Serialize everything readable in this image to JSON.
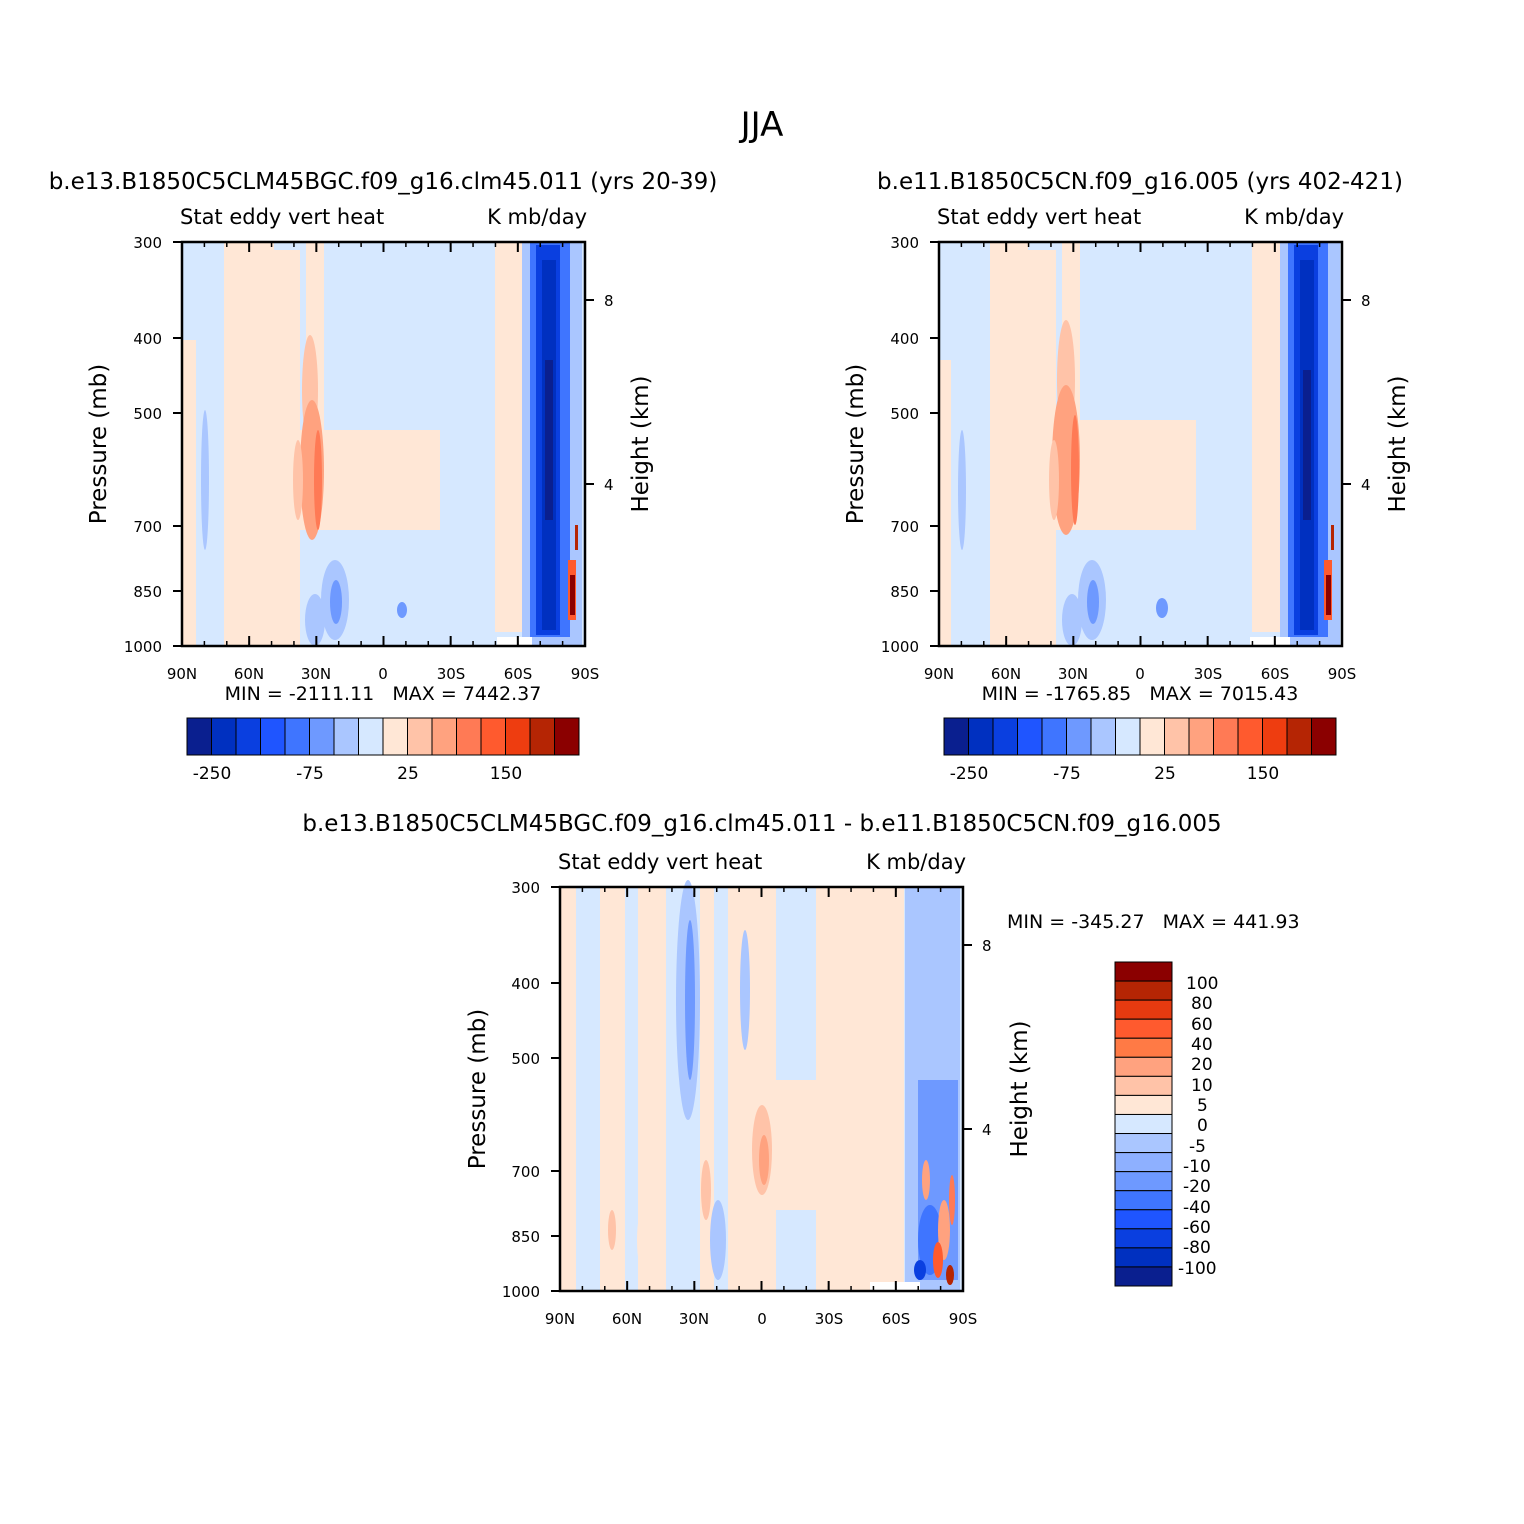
{
  "title": "JJA",
  "colors": {
    "left_palette": [
      "#0a1f8f",
      "#0030c0",
      "#0a3fe0",
      "#1f55ff",
      "#3f75ff",
      "#6e99ff",
      "#aac6ff",
      "#d6e8ff",
      "#ffe7d6",
      "#ffc3a8",
      "#ffa27f",
      "#ff7a55",
      "#ff5a2e",
      "#ee3d10",
      "#b52504",
      "#8b0000"
    ],
    "diff_palette": [
      "#8b0000",
      "#b52504",
      "#e63a10",
      "#ff5a2e",
      "#ff7a45",
      "#ffa27f",
      "#ffc3a8",
      "#ffe7d6",
      "#d6e8ff",
      "#aac6ff",
      "#8eb0ff",
      "#6e99ff",
      "#3f75ff",
      "#1f55ff",
      "#0a3fe0",
      "#0030c0",
      "#0a1f8f"
    ]
  },
  "chart_data": [
    {
      "type": "heatmap",
      "title": "b.e13.B1850C5CLM45BGC.f09_g16.clm45.011 (yrs 20-39)",
      "left_string": "Stat eddy vert heat",
      "right_string": "K mb/day",
      "ylabel": "Pressure (mb)",
      "y2label": "Height (km)",
      "x_ticks": [
        "90N",
        "60N",
        "30N",
        "0",
        "30S",
        "60S",
        "90S"
      ],
      "y_ticks": [
        "300",
        "400",
        "500",
        "700",
        "850",
        "1000"
      ],
      "y2_ticks": [
        "8",
        "4"
      ],
      "min_max": "MIN = -2111.11   MAX = 7442.37",
      "colorbar_labels": [
        "-250",
        "-75",
        "25",
        "150"
      ]
    },
    {
      "type": "heatmap",
      "title": "b.e11.B1850C5CN.f09_g16.005 (yrs 402-421)",
      "left_string": "Stat eddy vert heat",
      "right_string": "K mb/day",
      "ylabel": "Pressure (mb)",
      "y2label": "Height (km)",
      "x_ticks": [
        "90N",
        "60N",
        "30N",
        "0",
        "30S",
        "60S",
        "90S"
      ],
      "y_ticks": [
        "300",
        "400",
        "500",
        "700",
        "850",
        "1000"
      ],
      "y2_ticks": [
        "8",
        "4"
      ],
      "min_max": "MIN = -1765.85   MAX = 7015.43",
      "colorbar_labels": [
        "-250",
        "-75",
        "25",
        "150"
      ]
    },
    {
      "type": "heatmap",
      "title": "b.e13.B1850C5CLM45BGC.f09_g16.clm45.011 - b.e11.B1850C5CN.f09_g16.005",
      "left_string": "Stat eddy vert heat",
      "right_string": "K mb/day",
      "ylabel": "Pressure (mb)",
      "y2label": "Height (km)",
      "x_ticks": [
        "90N",
        "60N",
        "30N",
        "0",
        "30S",
        "60S",
        "90S"
      ],
      "y_ticks": [
        "300",
        "400",
        "500",
        "700",
        "850",
        "1000"
      ],
      "y2_ticks": [
        "8",
        "4"
      ],
      "min_max": "MIN = -345.27   MAX = 441.93",
      "colorbar_labels": [
        "100",
        "80",
        "60",
        "40",
        "20",
        "10",
        "5",
        "0",
        "-5",
        "-10",
        "-20",
        "-40",
        "-60",
        "-80",
        "-100"
      ]
    }
  ]
}
